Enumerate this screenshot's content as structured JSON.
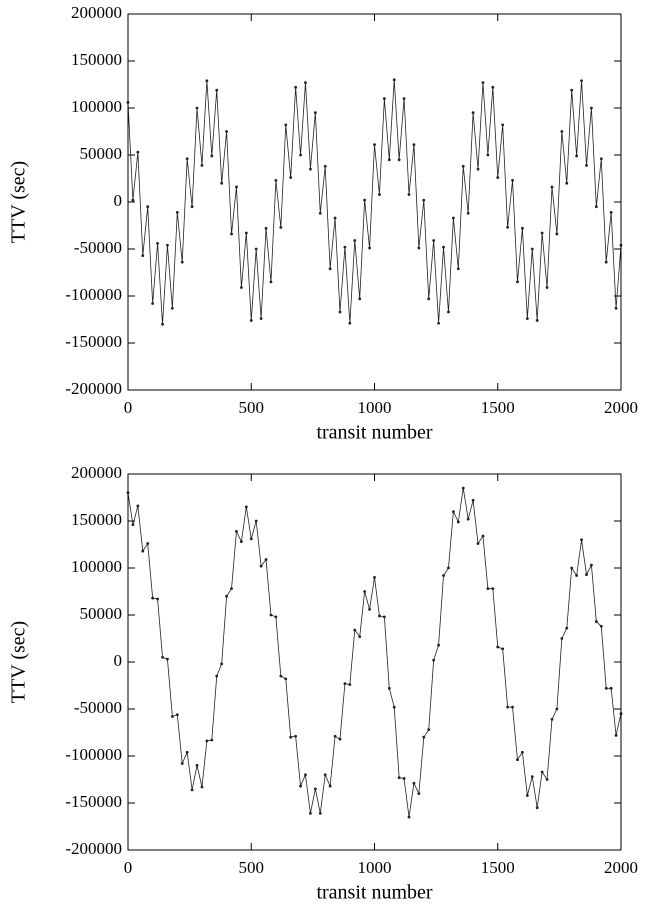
{
  "chart_data": [
    {
      "type": "line",
      "color": "#222222",
      "xlabel": "transit number",
      "ylabel": "TTV (sec)",
      "xlim": [
        0,
        2000
      ],
      "xticks": [
        0,
        500,
        1000,
        1500,
        2000
      ],
      "ylim": [
        -200000,
        200000
      ],
      "yticks": [
        -200000,
        -150000,
        -100000,
        -50000,
        0,
        50000,
        100000,
        150000,
        200000
      ],
      "x": [
        0,
        20,
        40,
        60,
        80,
        100,
        120,
        140,
        160,
        180,
        200,
        220,
        240,
        260,
        280,
        300,
        320,
        340,
        360,
        380,
        400,
        420,
        440,
        460,
        480,
        500,
        520,
        540,
        560,
        580,
        600,
        620,
        640,
        660,
        680,
        700,
        720,
        740,
        760,
        780,
        800,
        820,
        840,
        860,
        880,
        900,
        920,
        940,
        960,
        980,
        1000,
        1020,
        1040,
        1060,
        1080,
        1100,
        1120,
        1140,
        1160,
        1180,
        1200,
        1220,
        1240,
        1260,
        1280,
        1300,
        1320,
        1340,
        1360,
        1380,
        1400,
        1420,
        1440,
        1460,
        1480,
        1500,
        1520,
        1540,
        1560,
        1580,
        1600,
        1620,
        1640,
        1660,
        1680,
        1700,
        1720,
        1740,
        1760,
        1780,
        1800,
        1820,
        1840,
        1860,
        1880,
        1900,
        1920,
        1940,
        1960,
        1980,
        2000
      ],
      "values": [
        106000,
        2000,
        53000,
        -57000,
        -5000,
        -108000,
        -44000,
        -130000,
        -46000,
        -113000,
        -11000,
        -64000,
        46000,
        -5000,
        100000,
        39000,
        129000,
        49000,
        119000,
        20000,
        75000,
        -34000,
        16000,
        -91000,
        -33000,
        -126000,
        -50000,
        -124000,
        -28000,
        -85000,
        23000,
        -27000,
        82000,
        26000,
        122000,
        50000,
        127000,
        35000,
        95000,
        -12000,
        38000,
        -71000,
        -17000,
        -117000,
        -48000,
        -129000,
        -41000,
        -103000,
        2000,
        -49000,
        61000,
        8000,
        110000,
        45000,
        130000,
        45000,
        110000,
        8000,
        61000,
        -49000,
        2000,
        -103000,
        -41000,
        -129000,
        -48000,
        -117000,
        -17000,
        -71000,
        38000,
        -12000,
        95000,
        35000,
        127000,
        50000,
        122000,
        26000,
        82000,
        -27000,
        23000,
        -85000,
        -28000,
        -124000,
        -50000,
        -126000,
        -33000,
        -91000,
        16000,
        -34000,
        75000,
        20000,
        119000,
        49000,
        129000,
        39000,
        100000,
        -5000,
        46000,
        -64000,
        -11000,
        -113000,
        -46000
      ]
    },
    {
      "type": "line",
      "color": "#222222",
      "xlabel": "transit number",
      "ylabel": "TTV (sec)",
      "xlim": [
        0,
        2000
      ],
      "xticks": [
        0,
        500,
        1000,
        1500,
        2000
      ],
      "ylim": [
        -200000,
        200000
      ],
      "yticks": [
        -200000,
        -150000,
        -100000,
        -50000,
        0,
        50000,
        100000,
        150000,
        200000
      ],
      "x": [
        0,
        20,
        40,
        60,
        80,
        100,
        120,
        140,
        160,
        180,
        200,
        220,
        240,
        260,
        280,
        300,
        320,
        340,
        360,
        380,
        400,
        420,
        440,
        460,
        480,
        500,
        520,
        540,
        560,
        580,
        600,
        620,
        640,
        660,
        680,
        700,
        720,
        740,
        760,
        780,
        800,
        820,
        840,
        860,
        880,
        900,
        920,
        940,
        960,
        980,
        1000,
        1020,
        1040,
        1060,
        1080,
        1100,
        1120,
        1140,
        1160,
        1180,
        1200,
        1220,
        1240,
        1260,
        1280,
        1300,
        1320,
        1340,
        1360,
        1380,
        1400,
        1420,
        1440,
        1460,
        1480,
        1500,
        1520,
        1540,
        1560,
        1580,
        1600,
        1620,
        1640,
        1660,
        1680,
        1700,
        1720,
        1740,
        1760,
        1780,
        1800,
        1820,
        1840,
        1860,
        1880,
        1900,
        1920,
        1940,
        1960,
        1980,
        2000
      ],
      "values": [
        180000,
        146000,
        166000,
        118000,
        126000,
        68000,
        67000,
        5000,
        3000,
        -58000,
        -56000,
        -108000,
        -96000,
        -136000,
        -110000,
        -133000,
        -84000,
        -83000,
        -15000,
        -2000,
        70000,
        78000,
        139000,
        128000,
        165000,
        131000,
        150000,
        102000,
        109000,
        50000,
        48000,
        -15000,
        -18000,
        -80000,
        -79000,
        -132000,
        -120000,
        -161000,
        -135000,
        -161000,
        -120000,
        -132000,
        -79000,
        -82000,
        -23000,
        -24000,
        34000,
        27000,
        75000,
        56000,
        90000,
        49000,
        48000,
        -28000,
        -48000,
        -123000,
        -124000,
        -165000,
        -129000,
        -140000,
        -80000,
        -72000,
        2000,
        18000,
        92000,
        100000,
        160000,
        149000,
        185000,
        152000,
        172000,
        126000,
        134000,
        78000,
        78000,
        16000,
        14000,
        -48000,
        -48000,
        -104000,
        -96000,
        -142000,
        -122000,
        -155000,
        -117000,
        -125000,
        -61000,
        -50000,
        25000,
        36000,
        100000,
        92000,
        130000,
        93000,
        103000,
        43000,
        38000,
        -28000,
        -28000,
        -78000,
        -55000
      ]
    }
  ]
}
